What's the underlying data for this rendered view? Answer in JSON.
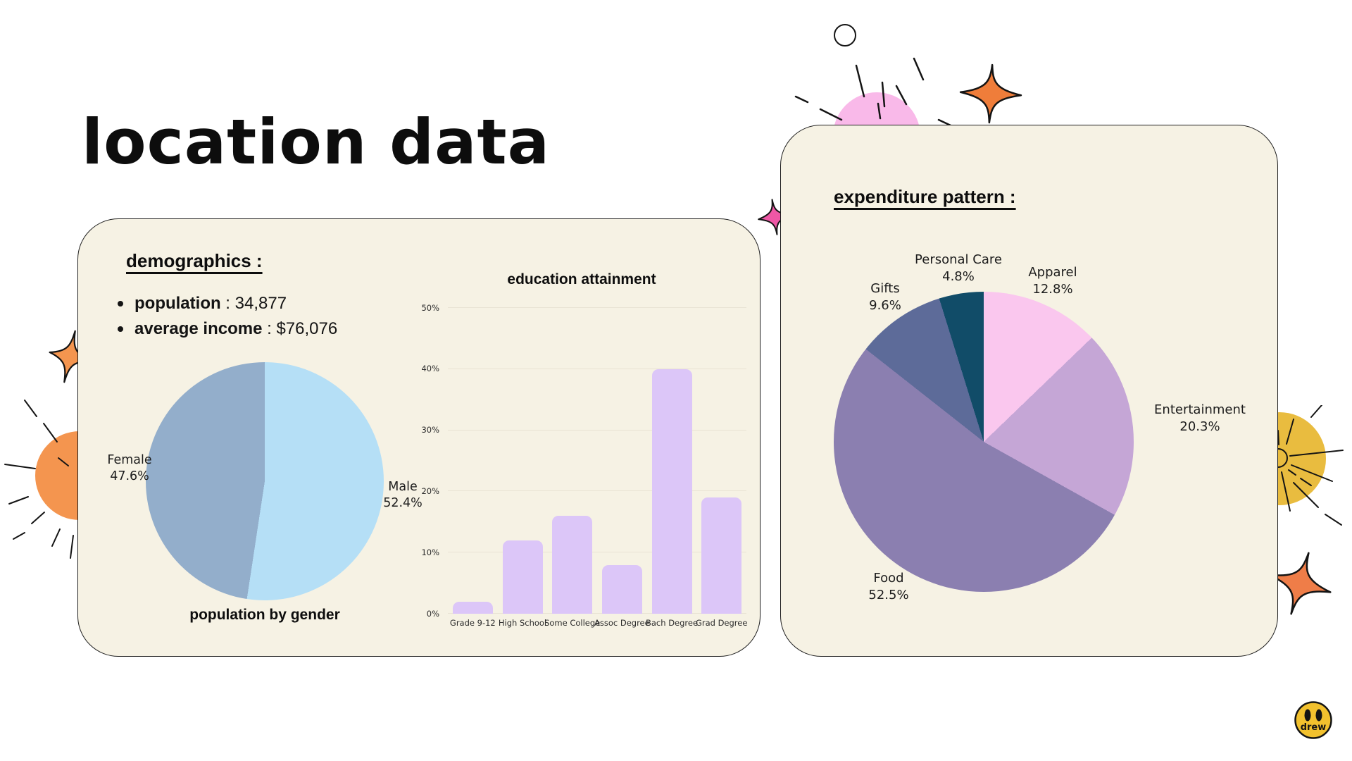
{
  "page": {
    "title": "location data"
  },
  "demographics": {
    "heading": "demographics :",
    "bullets": [
      {
        "label": "population",
        "value": " : 34,877"
      },
      {
        "label": "average income",
        "value": " : $76,076"
      }
    ]
  },
  "expenditure": {
    "heading": "expenditure pattern :"
  },
  "chart_data": [
    {
      "type": "pie",
      "title": "population by gender",
      "labels": [
        "Male",
        "Female"
      ],
      "values": [
        52.4,
        47.6
      ],
      "colors": [
        "#b5dff6",
        "#93aecb"
      ],
      "start_angle_deg": 0,
      "direction": "clockwise",
      "display_labels": [
        {
          "name": "Female",
          "pct": "47.6%"
        },
        {
          "name": "Male",
          "pct": "52.4%"
        }
      ]
    },
    {
      "type": "bar",
      "title": "education attainment",
      "categories": [
        "Grade 9-12",
        "High School",
        "Some College",
        "Assoc Degree",
        "Bach Degree",
        "Grad Degree"
      ],
      "values": [
        2,
        12,
        16,
        8,
        40,
        19
      ],
      "unit": "%",
      "ylim": [
        0,
        50
      ],
      "yticks": [
        "0%",
        "10%",
        "20%",
        "30%",
        "40%",
        "50%"
      ],
      "grid": true,
      "bar_color": "#dcc6f8"
    },
    {
      "type": "pie",
      "title": "expenditure pattern",
      "labels": [
        "Apparel",
        "Entertainment",
        "Food",
        "Gifts",
        "Personal Care"
      ],
      "values": [
        12.8,
        20.3,
        52.5,
        9.6,
        4.8
      ],
      "colors": [
        "#fac7ee",
        "#c5a6d6",
        "#8b7fb0",
        "#5d6b99",
        "#114c68"
      ],
      "start_angle_deg": 0,
      "direction": "clockwise",
      "display_labels": [
        {
          "name": "Personal Care",
          "pct": "4.8%"
        },
        {
          "name": "Apparel",
          "pct": "12.8%"
        },
        {
          "name": "Gifts",
          "pct": "9.6%"
        },
        {
          "name": "Entertainment",
          "pct": "20.3%"
        },
        {
          "name": "Food",
          "pct": "52.5%"
        }
      ]
    }
  ],
  "decorations": {
    "smiley_text": "drew"
  },
  "colors": {
    "page_bg": "#ffffff",
    "card_bg": "#f6f2e4",
    "ink": "#141414"
  }
}
